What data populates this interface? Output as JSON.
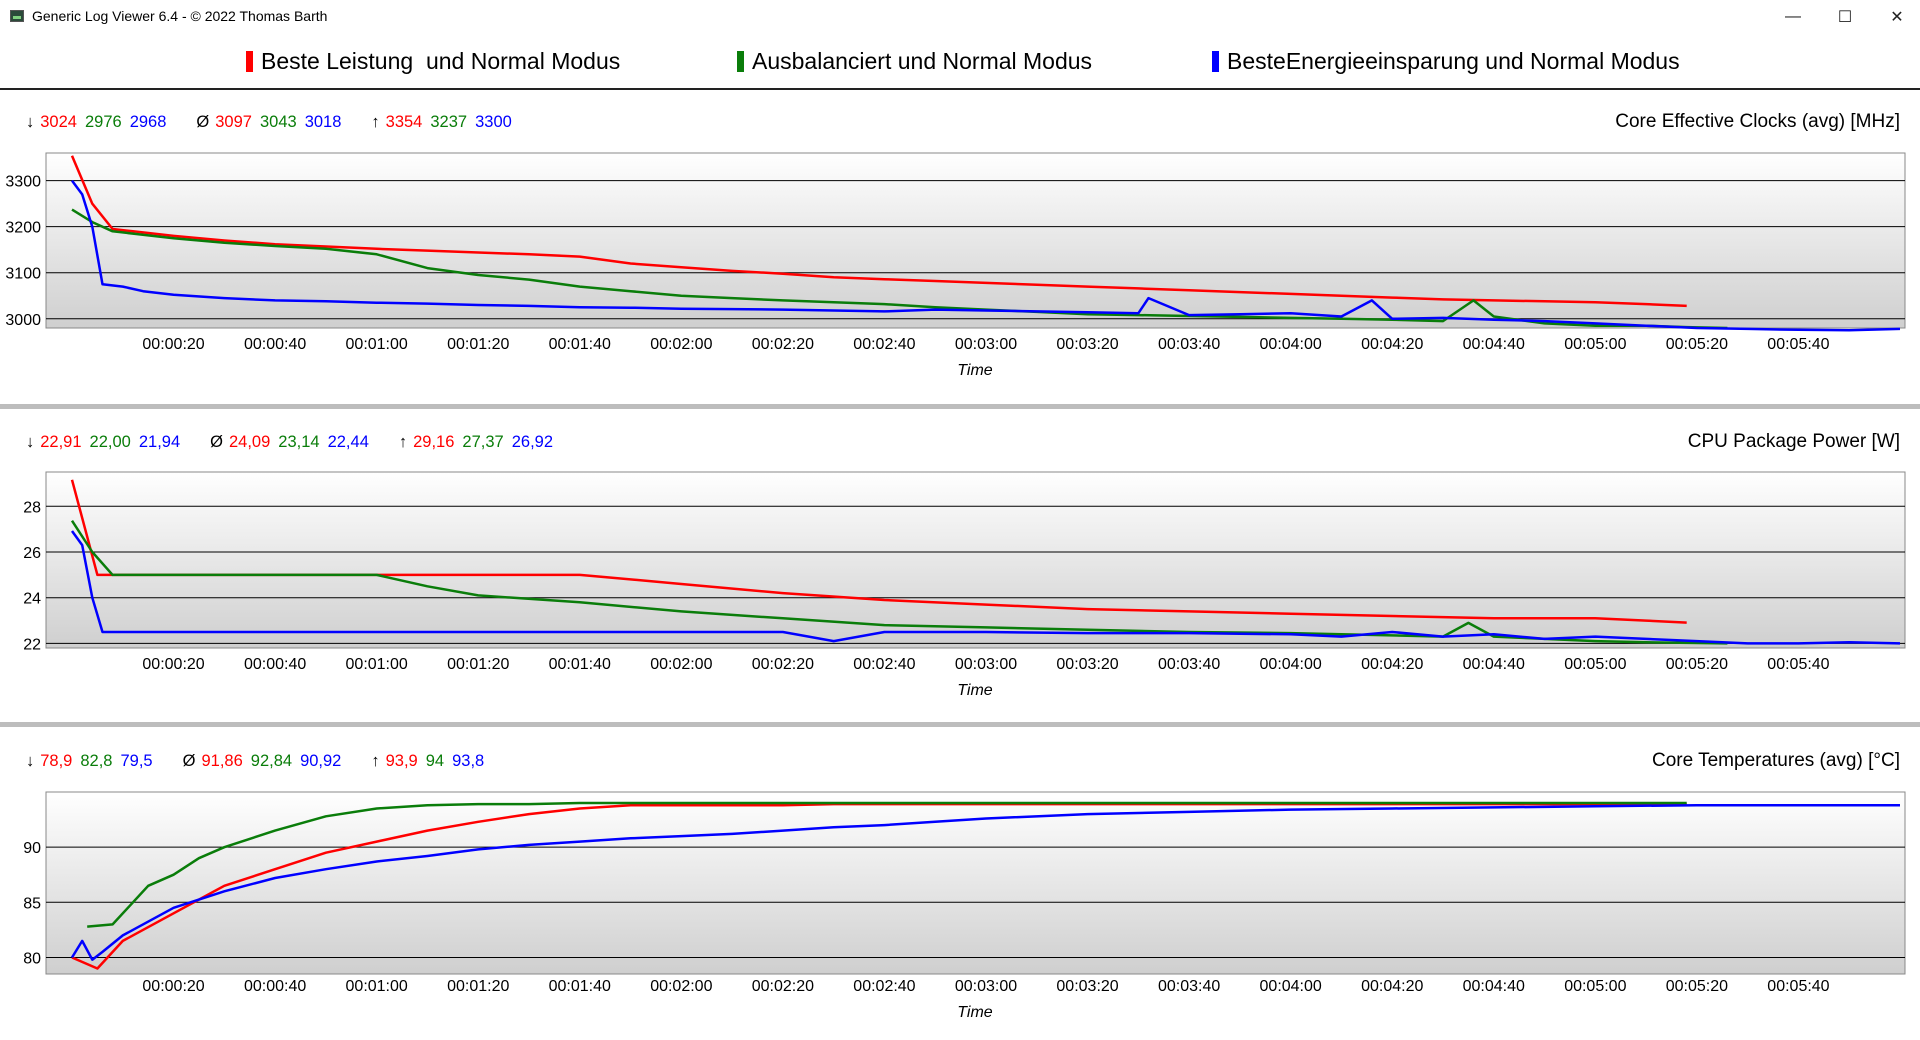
{
  "window": {
    "title": "Generic Log Viewer 6.4 - © 2022 Thomas Barth",
    "minimize": "—",
    "maximize": "☐",
    "close": "✕"
  },
  "colors": {
    "red": "#ff0000",
    "green": "#0a7d0a",
    "blue": "#0000ff"
  },
  "legend": [
    {
      "label": "Beste Leistung  und Normal Modus",
      "color": "#ff0000"
    },
    {
      "label": "Ausbalanciert und Normal Modus",
      "color": "#0a7d0a"
    },
    {
      "label": "BesteEnergieeinsparung und Normal Modus",
      "color": "#0000ff"
    }
  ],
  "chart_data": [
    {
      "type": "line",
      "title": "Core Effective Clocks (avg) [MHz]",
      "xlabel": "Time",
      "ylabel": "",
      "ylim": [
        2980,
        3360
      ],
      "yticks": [
        3000,
        3100,
        3200,
        3300
      ],
      "xlim": [
        0,
        360
      ],
      "xticks": [
        "00:00:20",
        "00:00:40",
        "00:01:00",
        "00:01:20",
        "00:01:40",
        "00:02:00",
        "00:02:20",
        "00:02:40",
        "00:03:00",
        "00:03:20",
        "00:03:40",
        "00:04:00",
        "00:04:20",
        "00:04:40",
        "00:05:00",
        "00:05:20",
        "00:05:40"
      ],
      "stats": {
        "min": [
          "3024",
          "2976",
          "2968"
        ],
        "avg": [
          "3097",
          "3043",
          "3018"
        ],
        "max": [
          "3354",
          "3237",
          "3300"
        ]
      },
      "series": [
        {
          "name": "Beste Leistung  und Normal Modus",
          "color": "#ff0000",
          "x": [
            0,
            4,
            8,
            12,
            20,
            30,
            40,
            50,
            60,
            70,
            80,
            90,
            100,
            110,
            120,
            130,
            140,
            150,
            160,
            170,
            180,
            190,
            200,
            210,
            220,
            230,
            240,
            250,
            260,
            270,
            280,
            290,
            300,
            310,
            318
          ],
          "y": [
            3354,
            3250,
            3195,
            3190,
            3180,
            3170,
            3162,
            3157,
            3152,
            3148,
            3144,
            3140,
            3135,
            3120,
            3112,
            3104,
            3098,
            3090,
            3086,
            3082,
            3078,
            3074,
            3070,
            3066,
            3062,
            3058,
            3054,
            3050,
            3046,
            3042,
            3040,
            3038,
            3036,
            3032,
            3028
          ]
        },
        {
          "name": "Ausbalanciert und Normal Modus",
          "color": "#0a7d0a",
          "x": [
            0,
            4,
            8,
            12,
            20,
            30,
            40,
            50,
            60,
            70,
            80,
            90,
            100,
            110,
            120,
            130,
            140,
            150,
            160,
            170,
            180,
            190,
            200,
            210,
            220,
            230,
            240,
            250,
            260,
            270,
            276,
            280,
            290,
            300,
            310,
            318,
            326
          ],
          "y": [
            3237,
            3210,
            3190,
            3185,
            3175,
            3165,
            3158,
            3152,
            3140,
            3110,
            3095,
            3085,
            3070,
            3060,
            3050,
            3045,
            3040,
            3036,
            3032,
            3025,
            3020,
            3015,
            3010,
            3008,
            3006,
            3004,
            3002,
            3000,
            2998,
            2995,
            3040,
            3005,
            2990,
            2985,
            2985,
            2982,
            2980
          ]
        },
        {
          "name": "BesteEnergieeinsparung und Normal Modus",
          "color": "#0000ff",
          "x": [
            0,
            2,
            4,
            6,
            10,
            14,
            20,
            30,
            40,
            50,
            60,
            70,
            80,
            90,
            100,
            110,
            120,
            130,
            140,
            150,
            160,
            170,
            180,
            190,
            200,
            210,
            212,
            220,
            230,
            240,
            250,
            256,
            260,
            270,
            280,
            290,
            300,
            310,
            320,
            330,
            340,
            350,
            360
          ],
          "y": [
            3300,
            3270,
            3200,
            3075,
            3070,
            3060,
            3052,
            3045,
            3040,
            3038,
            3035,
            3033,
            3030,
            3028,
            3025,
            3024,
            3022,
            3021,
            3020,
            3018,
            3016,
            3020,
            3018,
            3016,
            3014,
            3012,
            3045,
            3008,
            3010,
            3012,
            3005,
            3040,
            3000,
            3002,
            2998,
            2995,
            2990,
            2985,
            2980,
            2978,
            2976,
            2975,
            2978
          ]
        }
      ]
    },
    {
      "type": "line",
      "title": "CPU Package Power [W]",
      "xlabel": "Time",
      "ylabel": "",
      "ylim": [
        21.8,
        29.5
      ],
      "yticks": [
        22,
        24,
        26,
        28
      ],
      "xlim": [
        0,
        360
      ],
      "xticks": [
        "00:00:20",
        "00:00:40",
        "00:01:00",
        "00:01:20",
        "00:01:40",
        "00:02:00",
        "00:02:20",
        "00:02:40",
        "00:03:00",
        "00:03:20",
        "00:03:40",
        "00:04:00",
        "00:04:20",
        "00:04:40",
        "00:05:00",
        "00:05:20",
        "00:05:40"
      ],
      "stats": {
        "min": [
          "22,91",
          "22,00",
          "21,94"
        ],
        "avg": [
          "24,09",
          "23,14",
          "22,44"
        ],
        "max": [
          "29,16",
          "27,37",
          "26,92"
        ]
      },
      "series": [
        {
          "name": "Beste Leistung  und Normal Modus",
          "color": "#ff0000",
          "x": [
            0,
            5,
            10,
            20,
            40,
            60,
            80,
            100,
            105,
            120,
            140,
            160,
            180,
            200,
            220,
            240,
            260,
            280,
            300,
            310,
            318
          ],
          "y": [
            29.16,
            25,
            25,
            25,
            25,
            25,
            25,
            25,
            24.9,
            24.6,
            24.2,
            23.9,
            23.7,
            23.5,
            23.4,
            23.3,
            23.2,
            23.1,
            23.1,
            23.0,
            22.91
          ]
        },
        {
          "name": "Ausbalanciert und Normal Modus",
          "color": "#0a7d0a",
          "x": [
            0,
            4,
            8,
            12,
            20,
            40,
            60,
            70,
            80,
            100,
            120,
            140,
            160,
            180,
            200,
            220,
            240,
            250,
            260,
            270,
            275,
            280,
            290,
            300,
            310,
            326
          ],
          "y": [
            27.37,
            26,
            25,
            25,
            25,
            25,
            25,
            24.5,
            24.1,
            23.8,
            23.4,
            23.1,
            22.8,
            22.7,
            22.6,
            22.5,
            22.45,
            22.4,
            22.35,
            22.3,
            22.9,
            22.3,
            22.2,
            22.1,
            22.05,
            22.0
          ]
        },
        {
          "name": "BesteEnergieeinsparung und Normal Modus",
          "color": "#0000ff",
          "x": [
            0,
            2,
            4,
            6,
            20,
            40,
            60,
            80,
            100,
            120,
            140,
            150,
            160,
            180,
            200,
            220,
            240,
            250,
            260,
            270,
            280,
            290,
            300,
            310,
            320,
            330,
            340,
            350,
            360
          ],
          "y": [
            26.92,
            26.3,
            24,
            22.5,
            22.5,
            22.5,
            22.5,
            22.5,
            22.5,
            22.5,
            22.5,
            22.1,
            22.5,
            22.5,
            22.45,
            22.45,
            22.4,
            22.3,
            22.5,
            22.3,
            22.4,
            22.2,
            22.3,
            22.2,
            22.1,
            22.0,
            22.0,
            22.05,
            22.0
          ]
        }
      ]
    },
    {
      "type": "line",
      "title": "Core Temperatures (avg) [°C]",
      "xlabel": "Time",
      "ylabel": "",
      "ylim": [
        78.5,
        95
      ],
      "yticks": [
        80,
        85,
        90
      ],
      "xlim": [
        0,
        360
      ],
      "xticks": [
        "00:00:20",
        "00:00:40",
        "00:01:00",
        "00:01:20",
        "00:01:40",
        "00:02:00",
        "00:02:20",
        "00:02:40",
        "00:03:00",
        "00:03:20",
        "00:03:40",
        "00:04:00",
        "00:04:20",
        "00:04:40",
        "00:05:00",
        "00:05:20",
        "00:05:40"
      ],
      "stats": {
        "min": [
          "78,9",
          "82,8",
          "79,5"
        ],
        "avg": [
          "91,86",
          "92,84",
          "90,92"
        ],
        "max": [
          "93,9",
          "94",
          "93,8"
        ]
      },
      "series": [
        {
          "name": "Beste Leistung  und Normal Modus",
          "color": "#ff0000",
          "x": [
            0,
            5,
            10,
            20,
            30,
            40,
            50,
            60,
            70,
            80,
            90,
            100,
            110,
            120,
            130,
            140,
            150,
            200,
            250,
            300,
            318
          ],
          "y": [
            80,
            79,
            81.5,
            84,
            86.5,
            88,
            89.5,
            90.5,
            91.5,
            92.3,
            93,
            93.5,
            93.8,
            93.8,
            93.8,
            93.8,
            93.9,
            93.9,
            93.9,
            93.9,
            93.9
          ]
        },
        {
          "name": "Ausbalanciert und Normal Modus",
          "color": "#0a7d0a",
          "x": [
            3,
            8,
            15,
            20,
            25,
            30,
            40,
            50,
            60,
            70,
            80,
            90,
            100,
            150,
            200,
            250,
            300,
            318
          ],
          "y": [
            82.8,
            83,
            86.5,
            87.5,
            89,
            90,
            91.5,
            92.8,
            93.5,
            93.8,
            93.9,
            93.9,
            94,
            94,
            94,
            94,
            94,
            94
          ]
        },
        {
          "name": "BesteEnergieeinsparung und Normal Modus",
          "color": "#0000ff",
          "x": [
            0,
            2,
            4,
            6,
            10,
            20,
            30,
            40,
            50,
            60,
            70,
            80,
            90,
            100,
            110,
            120,
            130,
            140,
            150,
            160,
            170,
            180,
            200,
            220,
            240,
            260,
            280,
            300,
            320,
            340,
            360
          ],
          "y": [
            80,
            81.5,
            79.8,
            80.5,
            82,
            84.5,
            86,
            87.2,
            88,
            88.7,
            89.2,
            89.8,
            90.2,
            90.5,
            90.8,
            91,
            91.2,
            91.5,
            91.8,
            92,
            92.3,
            92.6,
            93,
            93.2,
            93.4,
            93.5,
            93.6,
            93.7,
            93.8,
            93.8,
            93.8
          ]
        }
      ]
    }
  ]
}
